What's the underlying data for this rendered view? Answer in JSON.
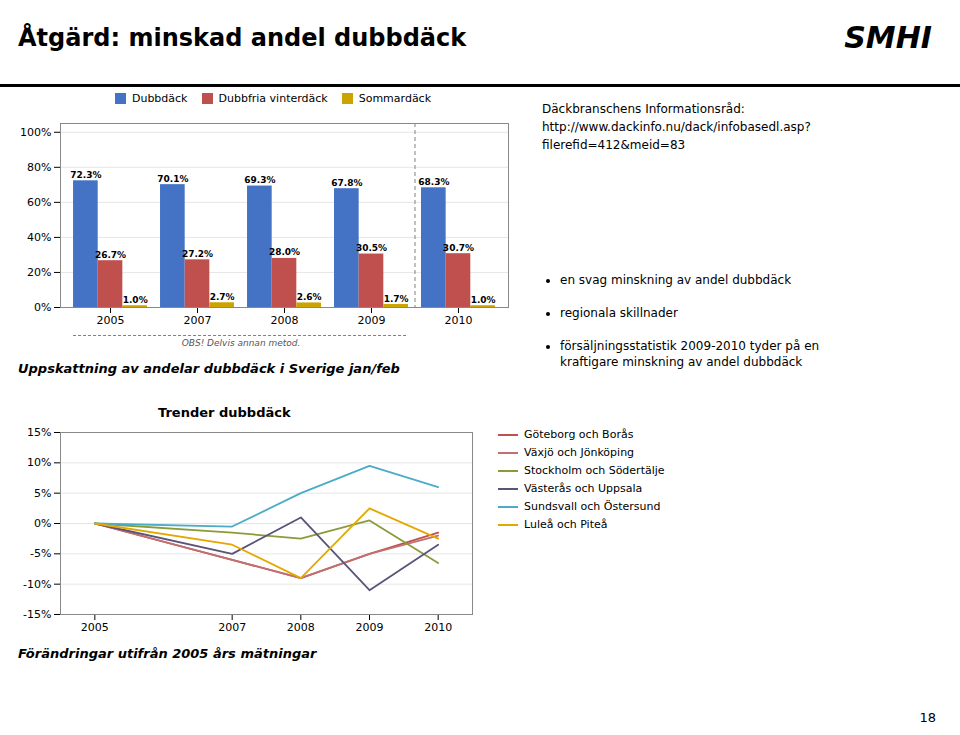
{
  "title": "Åtgärd: minskad andel dubbdäck",
  "annotations": [
    "SMHI",
    "Däckbranschens Informationsråd:\nhttp://www.dackinfo.nu/dack/infobasedl.asp?\nfilerefid=412&meid=83",
    "en svag minskning av andel dubbdäck",
    "regionala skillnader",
    "försäljningsstatistik 2009-2010 tyder på en\nkraftigare minskning av andel dubbdäck",
    "18"
  ],
  "chart_data": [
    {
      "type": "bar",
      "categories": [
        "2005",
        "2007",
        "2008",
        "2009",
        "2010"
      ],
      "series": [
        {
          "name": "Dubbdäck",
          "color": "#4472C4",
          "values": [
            72.3,
            70.1,
            69.3,
            67.8,
            68.3
          ],
          "value_labels": [
            "72.3%",
            "70.1%",
            "69.3%",
            "67.8%",
            "68.3%"
          ]
        },
        {
          "name": "Dubbfria vinterdäck",
          "color": "#C0504D",
          "values": [
            26.7,
            27.2,
            28.0,
            30.5,
            30.7
          ],
          "value_labels": [
            "26.7%",
            "27.2%",
            "28.0%",
            "30.5%",
            "30.7%"
          ]
        },
        {
          "name": "Sommardäck",
          "color": "#CCA300",
          "values": [
            1.0,
            2.7,
            2.6,
            1.7,
            1.0
          ],
          "value_labels": [
            "1.0%",
            "2.7%",
            "2.6%",
            "1.7%",
            "1.0%"
          ]
        }
      ],
      "ylim": [
        0,
        105
      ],
      "yticks": [
        {
          "value": 0,
          "label": "0%"
        },
        {
          "value": 20,
          "label": "20%"
        },
        {
          "value": 40,
          "label": "40%"
        },
        {
          "value": 60,
          "label": "60%"
        },
        {
          "value": 80,
          "label": "80%"
        },
        {
          "value": 100,
          "label": "100%"
        }
      ],
      "grid": true,
      "legend": "top",
      "data_labels": true,
      "annotations": [
        "OBS! Delvis annan metod.",
        "Uppskattning av andelar dubbdäck i Sverige jan/feb"
      ]
    },
    {
      "type": "line",
      "title": "Trender dubbdäck",
      "x": [
        2005,
        2007,
        2008,
        2009,
        2010
      ],
      "series": [
        {
          "name": "Göteborg och Borås",
          "color": "#C0504D",
          "values": [
            0,
            -6.0,
            -9.0,
            -5.0,
            -1.5
          ]
        },
        {
          "name": "Växjö och Jönköping",
          "color": "#C07070",
          "values": [
            0,
            -6.0,
            -9.0,
            -5.0,
            -2.0
          ]
        },
        {
          "name": "Stockholm och Södertälje",
          "color": "#8B9B3A",
          "values": [
            0,
            -1.5,
            -2.5,
            0.5,
            -6.5
          ]
        },
        {
          "name": "Västerås och Uppsala",
          "color": "#595478",
          "values": [
            0,
            -5.0,
            1.0,
            -11.0,
            -3.5
          ]
        },
        {
          "name": "Sundsvall och Östersund",
          "color": "#4BACC6",
          "values": [
            0,
            -0.5,
            5.0,
            9.5,
            6.0
          ]
        },
        {
          "name": "Luleå och Piteå",
          "color": "#E5A800",
          "values": [
            0,
            -3.5,
            -9.0,
            2.5,
            -2.5
          ]
        }
      ],
      "xlim": [
        2004.5,
        2010.5
      ],
      "xticks": [
        2005,
        2007,
        2008,
        2009,
        2010
      ],
      "ylim": [
        -15,
        15
      ],
      "yticks": [
        {
          "value": -15,
          "label": "-15%"
        },
        {
          "value": -10,
          "label": "-10%"
        },
        {
          "value": -5,
          "label": "-5%"
        },
        {
          "value": 0,
          "label": "0%"
        },
        {
          "value": 5,
          "label": "5%"
        },
        {
          "value": 10,
          "label": "10%"
        },
        {
          "value": 15,
          "label": "15%"
        }
      ],
      "grid": true,
      "legend": "right",
      "annotations": [
        "Förändringar utifrån 2005 års mätningar"
      ]
    }
  ]
}
